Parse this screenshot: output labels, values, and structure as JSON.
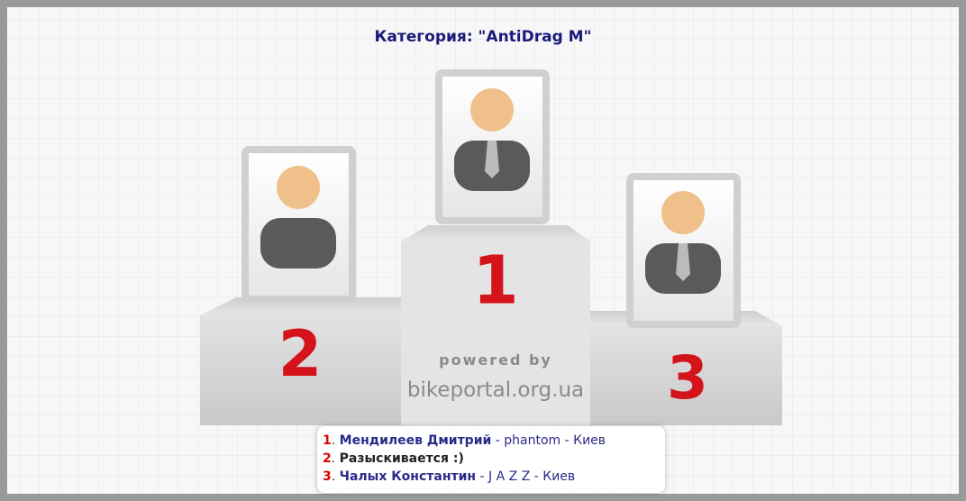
{
  "header": {
    "title": "Категория: \"AntiDrag M\""
  },
  "podium": {
    "places": [
      "1",
      "2",
      "3"
    ],
    "watermark": {
      "line1": "powered by",
      "line2": "bikeportal.org.ua"
    }
  },
  "results": [
    {
      "rank": "1",
      "sep": ".",
      "name": "Мендилеев Дмитрий",
      "rest": " - phantom - Киев"
    },
    {
      "rank": "2",
      "sep": ".",
      "name": "Разыскивается :)",
      "rest": ""
    },
    {
      "rank": "3",
      "sep": ".",
      "name": "Чалых Константин",
      "rest": " - J A Z Z - Киев"
    }
  ]
}
